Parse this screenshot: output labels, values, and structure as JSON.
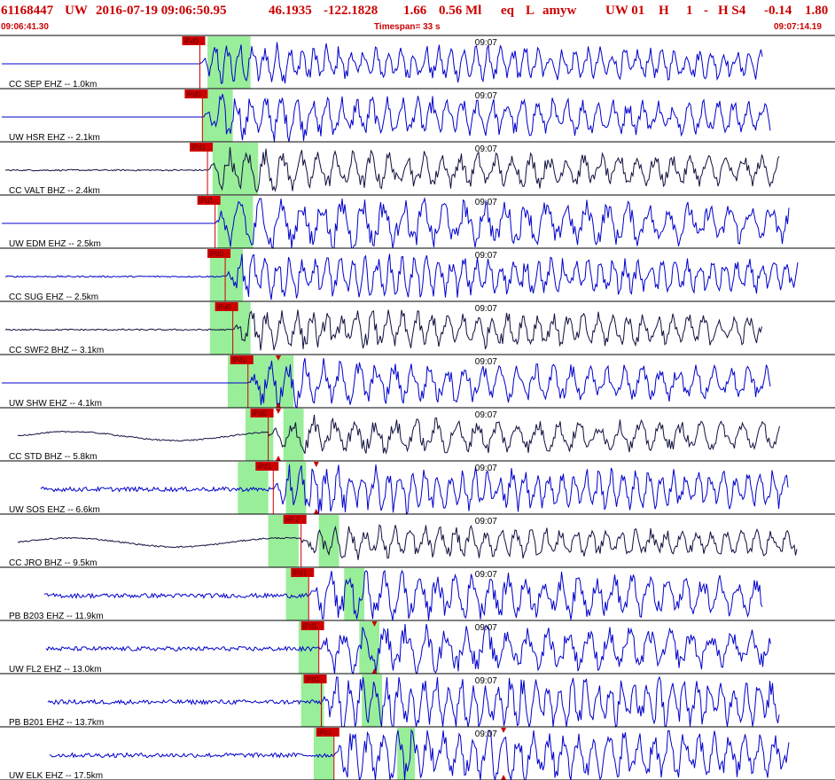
{
  "header": {
    "event_id": "61168447",
    "network": "UW",
    "datetime": "2016-07-19 09:06:50.95",
    "lat": "46.1935",
    "lon": "-122.1828",
    "depth": "1.66",
    "magnitude": "0.56 Ml",
    "event_type": "eq",
    "location_flag": "L",
    "author": "amyw",
    "source": "UW 01",
    "quality": "H",
    "field_1": "1",
    "field_2": "-",
    "review": "H S4",
    "val_1": "-0.14",
    "val_2": "1.80",
    "start_time": "09:06:41.30",
    "timespan": "Timespan=  33 s",
    "end_time": "09:07:14.19"
  },
  "colors": {
    "header_text": "#cc0000",
    "trace_blue": "#0000cc",
    "trace_dark": "#101040",
    "pick_red": "#cc0000",
    "window_green": "#99ee99",
    "separator": "#000000"
  },
  "chart_data": {
    "type": "line",
    "title": "",
    "xlabel": "",
    "ylabel": "",
    "x_start": "09:06:41.30",
    "x_end": "09:07:14.19",
    "timespan_s": 33,
    "time_tick_label": "09:07",
    "time_tick_s": 18.7,
    "series": [
      {
        "name": "CC SEP EHZ -- 1.0km",
        "color": "#0000cc",
        "p_pick": "iPd0",
        "p_s": 7.9,
        "noise": "flat",
        "amp": 0.55,
        "p_green": [
          8.2,
          9.9
        ],
        "s_green": null,
        "s_mark": null
      },
      {
        "name": "UW HSR EHZ -- 2.1km",
        "color": "#0000cc",
        "p_pick": "iPd0",
        "p_s": 8.0,
        "noise": "flat",
        "amp": 0.6,
        "p_green": [
          8.0,
          9.2
        ],
        "s_green": null,
        "s_mark": null
      },
      {
        "name": "CC VALT BHZ -- 2.4km",
        "color": "#101040",
        "p_pick": "iPd1",
        "p_s": 8.2,
        "noise": "low",
        "amp": 0.55,
        "p_green": [
          8.4,
          10.2
        ],
        "s_green": null,
        "s_mark": null
      },
      {
        "name": "UW EDM EHZ -- 2.5km",
        "color": "#0000cc",
        "p_pick": "iPd1",
        "p_s": 8.5,
        "noise": "flat",
        "amp": 0.75,
        "p_green": [
          8.6,
          10.0
        ],
        "s_green": null,
        "s_mark": null
      },
      {
        "name": "CC SUG EHZ -- 2.5km",
        "color": "#0000cc",
        "p_pick": "iPd0",
        "p_s": 8.9,
        "noise": "low",
        "amp": 0.6,
        "p_green": [
          8.3,
          9.6
        ],
        "s_green": null,
        "s_mark": null
      },
      {
        "name": "CC SWF2 BHZ -- 3.1km",
        "color": "#101040",
        "p_pick": "iPd0",
        "p_s": 9.2,
        "noise": "low",
        "amp": 0.55,
        "p_green": [
          8.3,
          9.9
        ],
        "s_green": null,
        "s_mark": null
      },
      {
        "name": "UW SHW EHZ -- 4.1km",
        "color": "#0000cc",
        "p_pick": "iPd1",
        "p_s": 9.8,
        "noise": "flat",
        "amp": 0.6,
        "p_green": [
          9.0,
          10.6
        ],
        "s_green": [
          10.6,
          11.6
        ],
        "s_mark": 11.0
      },
      {
        "name": "CC STD BHZ -- 5.8km",
        "color": "#101040",
        "p_pick": "iPd0",
        "p_s": 10.6,
        "noise": "swell",
        "amp": 0.5,
        "p_green": [
          9.7,
          10.8
        ],
        "s_green": [
          11.2,
          12.0
        ],
        "s_mark": 11.0
      },
      {
        "name": "UW SOS EHZ -- 6.6km",
        "color": "#0000cc",
        "p_pick": "iPd1",
        "p_s": 10.8,
        "noise": "noisy",
        "amp": 0.65,
        "p_green": [
          9.4,
          10.6
        ],
        "s_green": [
          11.3,
          12.1
        ],
        "s_mark": 12.5
      },
      {
        "name": "CC JRO BHZ -- 9.5km",
        "color": "#101040",
        "p_pick": "eP 2",
        "p_s": 11.9,
        "noise": "swell",
        "amp": 0.45,
        "p_green": [
          10.6,
          11.8
        ],
        "s_green": [
          12.6,
          13.4
        ],
        "s_mark": null
      },
      {
        "name": "PB B203 EHZ -- 11.9km",
        "color": "#0000cc",
        "p_pick": "iPd1",
        "p_s": 12.2,
        "noise": "noisy",
        "amp": 0.7,
        "p_green": [
          11.3,
          12.2
        ],
        "s_green": [
          13.6,
          14.4
        ],
        "s_mark": null
      },
      {
        "name": "UW FL2 EHZ -- 13.0km",
        "color": "#0000cc",
        "p_pick": "iPd1",
        "p_s": 12.6,
        "noise": "noisy",
        "amp": 0.65,
        "p_green": [
          11.8,
          12.6
        ],
        "s_green": [
          14.2,
          15.0
        ],
        "s_mark": 14.8
      },
      {
        "name": "PB B201 EHZ -- 13.7km",
        "color": "#0000cc",
        "p_pick": "iPd1",
        "p_s": 12.7,
        "noise": "noisy",
        "amp": 0.8,
        "p_green": [
          11.9,
          12.8
        ],
        "s_green": [
          14.3,
          15.1
        ],
        "s_mark": null
      },
      {
        "name": "UW ELK EHZ -- 17.5km",
        "color": "#0000cc",
        "p_pick": "iPc1",
        "p_s": 13.2,
        "noise": "noisy",
        "amp": 0.8,
        "p_green": [
          12.4,
          13.2
        ],
        "s_green": [
          15.7,
          16.4
        ],
        "s_mark": 19.9
      }
    ]
  }
}
